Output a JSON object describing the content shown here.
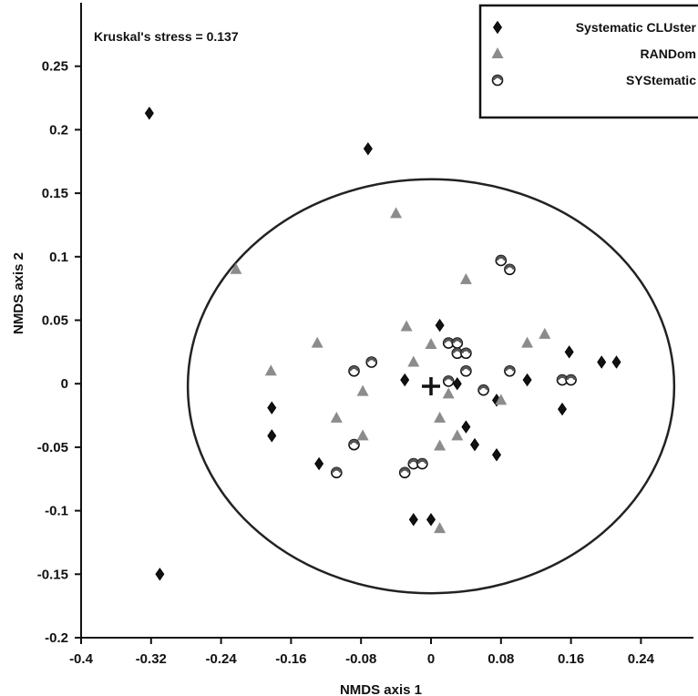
{
  "chart_data": {
    "type": "scatter",
    "xlabel": "NMDS axis 1",
    "ylabel": "NMDS axis 2",
    "xlim": [
      -0.4,
      0.3
    ],
    "ylim": [
      -0.2,
      0.3
    ],
    "xticks": [
      -0.4,
      -0.32,
      -0.24,
      -0.16,
      -0.08,
      0,
      0.08,
      0.16,
      0.24
    ],
    "xtick_labels": [
      "-0.4",
      "-0.32",
      "-0.24",
      "-0.16",
      "-0.08",
      "0",
      "0.08",
      "0.16",
      "0.24"
    ],
    "yticks": [
      -0.2,
      -0.15,
      -0.1,
      -0.05,
      0,
      0.05,
      0.1,
      0.15,
      0.2,
      0.25
    ],
    "ytick_labels": [
      "-0.2",
      "-0.15",
      "-0.1",
      "-0.05",
      "0",
      "0.05",
      "0.1",
      "0.15",
      "0.2",
      "0.25"
    ],
    "grid": false,
    "legend_position": "top-right",
    "annotation": "Kruskal's stress = 0.137",
    "centroid": {
      "x": 0.0,
      "y": -0.002,
      "marker": "plus"
    },
    "ellipse": {
      "cx": 0.0,
      "cy": -0.002,
      "rx": 0.278,
      "ry": 0.163
    },
    "series": [
      {
        "name": "Systematic CLUster",
        "marker": "diamond",
        "color": "#111111",
        "points": [
          {
            "x": -0.322,
            "y": 0.213
          },
          {
            "x": -0.31,
            "y": -0.15
          },
          {
            "x": -0.072,
            "y": 0.185
          },
          {
            "x": -0.182,
            "y": -0.019
          },
          {
            "x": -0.182,
            "y": -0.041
          },
          {
            "x": -0.128,
            "y": -0.063
          },
          {
            "x": -0.03,
            "y": 0.003
          },
          {
            "x": 0.01,
            "y": 0.046
          },
          {
            "x": 0.03,
            "y": 0.0
          },
          {
            "x": 0.04,
            "y": -0.034
          },
          {
            "x": 0.05,
            "y": -0.048
          },
          {
            "x": 0.075,
            "y": -0.013
          },
          {
            "x": 0.075,
            "y": -0.056
          },
          {
            "x": 0.11,
            "y": 0.003
          },
          {
            "x": 0.15,
            "y": -0.02
          },
          {
            "x": 0.158,
            "y": 0.025
          },
          {
            "x": 0.195,
            "y": 0.017
          },
          {
            "x": 0.212,
            "y": 0.017
          },
          {
            "x": -0.02,
            "y": -0.107
          },
          {
            "x": 0.0,
            "y": -0.107
          }
        ]
      },
      {
        "name": "RANDom",
        "marker": "triangle",
        "color": "#8c8c8c",
        "points": [
          {
            "x": -0.223,
            "y": 0.09
          },
          {
            "x": -0.04,
            "y": 0.134
          },
          {
            "x": -0.183,
            "y": 0.01
          },
          {
            "x": -0.13,
            "y": 0.032
          },
          {
            "x": -0.108,
            "y": -0.027
          },
          {
            "x": -0.078,
            "y": -0.006
          },
          {
            "x": -0.078,
            "y": -0.041
          },
          {
            "x": -0.028,
            "y": 0.045
          },
          {
            "x": -0.02,
            "y": 0.017
          },
          {
            "x": 0.0,
            "y": 0.031
          },
          {
            "x": 0.01,
            "y": -0.027
          },
          {
            "x": 0.01,
            "y": -0.049
          },
          {
            "x": 0.02,
            "y": -0.008
          },
          {
            "x": 0.03,
            "y": -0.041
          },
          {
            "x": 0.04,
            "y": 0.082
          },
          {
            "x": 0.08,
            "y": -0.013
          },
          {
            "x": 0.11,
            "y": 0.032
          },
          {
            "x": 0.13,
            "y": 0.039
          },
          {
            "x": 0.01,
            "y": -0.114
          }
        ]
      },
      {
        "name": "SYStematic",
        "marker": "open-circle",
        "color": "#ffffff",
        "points": [
          {
            "x": 0.08,
            "y": 0.097
          },
          {
            "x": 0.09,
            "y": 0.09
          },
          {
            "x": -0.088,
            "y": 0.01
          },
          {
            "x": -0.068,
            "y": 0.017
          },
          {
            "x": 0.02,
            "y": 0.032
          },
          {
            "x": 0.03,
            "y": 0.032
          },
          {
            "x": 0.03,
            "y": 0.024
          },
          {
            "x": 0.04,
            "y": 0.024
          },
          {
            "x": 0.04,
            "y": 0.01
          },
          {
            "x": 0.02,
            "y": 0.002
          },
          {
            "x": 0.06,
            "y": -0.005
          },
          {
            "x": 0.09,
            "y": 0.01
          },
          {
            "x": 0.15,
            "y": 0.003
          },
          {
            "x": 0.16,
            "y": 0.003
          },
          {
            "x": -0.088,
            "y": -0.048
          },
          {
            "x": -0.108,
            "y": -0.07
          },
          {
            "x": -0.03,
            "y": -0.07
          },
          {
            "x": -0.02,
            "y": -0.063
          },
          {
            "x": -0.01,
            "y": -0.063
          }
        ]
      }
    ]
  }
}
